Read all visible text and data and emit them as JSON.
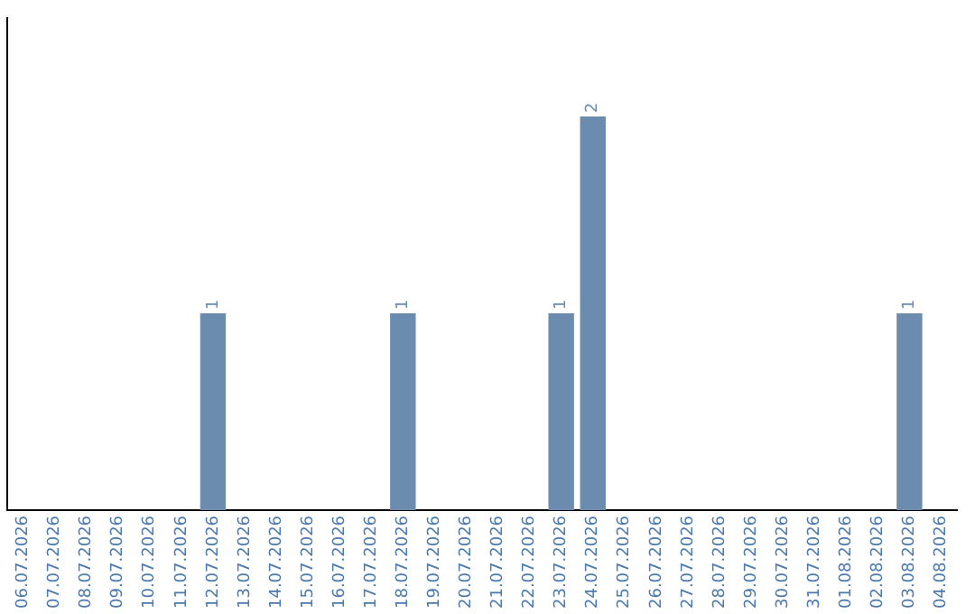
{
  "chart_data": {
    "type": "bar",
    "categories": [
      "06.07.2026",
      "07.07.2026",
      "08.07.2026",
      "09.07.2026",
      "10.07.2026",
      "11.07.2026",
      "12.07.2026",
      "13.07.2026",
      "14.07.2026",
      "15.07.2026",
      "16.07.2026",
      "17.07.2026",
      "18.07.2026",
      "19.07.2026",
      "20.07.2026",
      "21.07.2026",
      "22.07.2026",
      "23.07.2026",
      "24.07.2026",
      "25.07.2026",
      "26.07.2026",
      "27.07.2026",
      "28.07.2026",
      "29.07.2026",
      "30.07.2026",
      "31.07.2026",
      "01.08.2026",
      "02.08.2026",
      "03.08.2026",
      "04.08.2026"
    ],
    "values": [
      0,
      0,
      0,
      0,
      0,
      0,
      1,
      0,
      0,
      0,
      0,
      0,
      1,
      0,
      0,
      0,
      0,
      1,
      2,
      0,
      0,
      0,
      0,
      0,
      0,
      0,
      0,
      0,
      1,
      0
    ],
    "value_labels": [
      null,
      null,
      null,
      null,
      null,
      null,
      "1",
      null,
      null,
      null,
      null,
      null,
      "1",
      null,
      null,
      null,
      null,
      "1",
      "2",
      null,
      null,
      null,
      null,
      null,
      null,
      null,
      null,
      null,
      "1",
      null
    ],
    "color": "#6b8cae",
    "grid": false,
    "legend": false,
    "tick_labels": "x"
  }
}
